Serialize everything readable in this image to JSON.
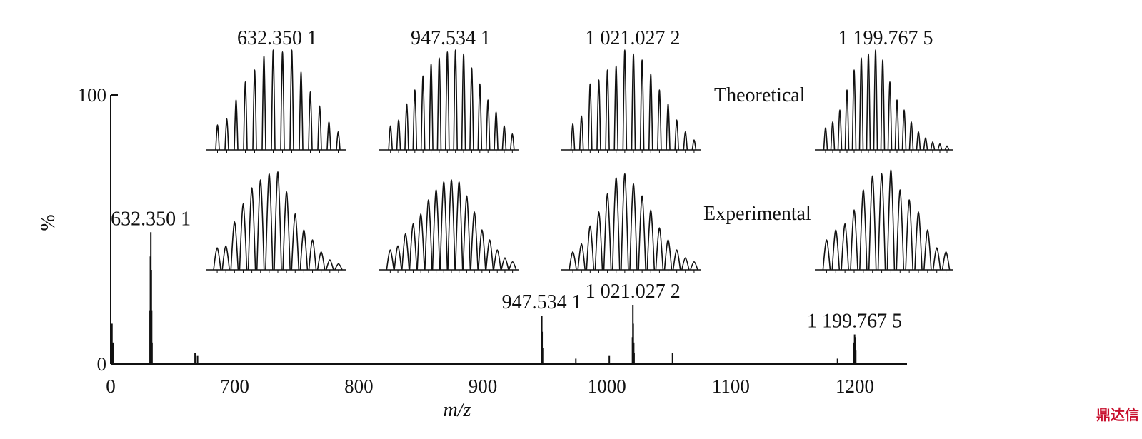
{
  "chart_data": {
    "type": "spectrum",
    "x_label": "m/z",
    "y_label": "%",
    "xlim": [
      600,
      1242
    ],
    "ylim": [
      0,
      100
    ],
    "xticks": [
      {
        "value": 600,
        "label": "0"
      },
      700,
      800,
      900,
      1000,
      1100,
      1200
    ],
    "yticks": [
      0,
      100
    ],
    "color": "#111111",
    "x": [
      601,
      602,
      631.7,
      632.0,
      632.35,
      632.7,
      633.0,
      633.3,
      668,
      670,
      947.2,
      947.53,
      947.8,
      948.2,
      975,
      1002,
      1020.7,
      1021.03,
      1021.3,
      1021.7,
      1022,
      1053,
      1186,
      1199.3,
      1199.77,
      1200.2,
      1200.7
    ],
    "values": [
      15,
      8,
      20,
      40,
      49,
      35,
      20,
      8,
      4,
      3,
      8,
      18,
      12,
      6,
      2,
      3,
      10,
      22,
      15,
      8,
      4,
      4,
      2,
      8,
      11,
      10,
      5
    ],
    "annotations": [
      {
        "text": "632.350 1",
        "x": 632.3501
      },
      {
        "text": "947.534 1",
        "x": 947.5341
      },
      {
        "text": "1 021.027 2",
        "x": 1021.0272
      },
      {
        "text": "1 199.767 5",
        "x": 1199.7675
      }
    ],
    "inset_labels": {
      "theoretical": "Theoretical",
      "experimental": "Experimental"
    },
    "insets": [
      {
        "title": "632.350 1",
        "theoretical": [
          25,
          31,
          50,
          68,
          80,
          94,
          100,
          98,
          100,
          78,
          58,
          44,
          28,
          18
        ],
        "experimental": [
          22,
          24,
          48,
          66,
          82,
          90,
          96,
          98,
          78,
          56,
          40,
          30,
          18,
          10,
          6
        ]
      },
      {
        "title": "947.534 1",
        "theoretical": [
          24,
          30,
          46,
          60,
          74,
          86,
          92,
          98,
          100,
          96,
          82,
          66,
          50,
          38,
          24,
          16
        ],
        "experimental": [
          20,
          24,
          36,
          46,
          56,
          70,
          80,
          88,
          90,
          88,
          74,
          58,
          40,
          30,
          20,
          12,
          8
        ]
      },
      {
        "title": "1 021.027 2",
        "theoretical": [
          26,
          34,
          66,
          70,
          80,
          84,
          100,
          96,
          90,
          76,
          60,
          46,
          30,
          18,
          10
        ],
        "experimental": [
          18,
          26,
          44,
          58,
          76,
          92,
          96,
          86,
          74,
          60,
          42,
          30,
          20,
          12,
          8
        ]
      },
      {
        "title": "1 199.767 5",
        "theoretical": [
          22,
          28,
          40,
          60,
          80,
          92,
          96,
          100,
          90,
          68,
          50,
          40,
          28,
          18,
          12,
          8,
          6,
          4
        ],
        "experimental": [
          30,
          40,
          46,
          60,
          80,
          94,
          96,
          100,
          80,
          70,
          58,
          40,
          22,
          18
        ]
      }
    ],
    "watermark": "鼎达信"
  }
}
